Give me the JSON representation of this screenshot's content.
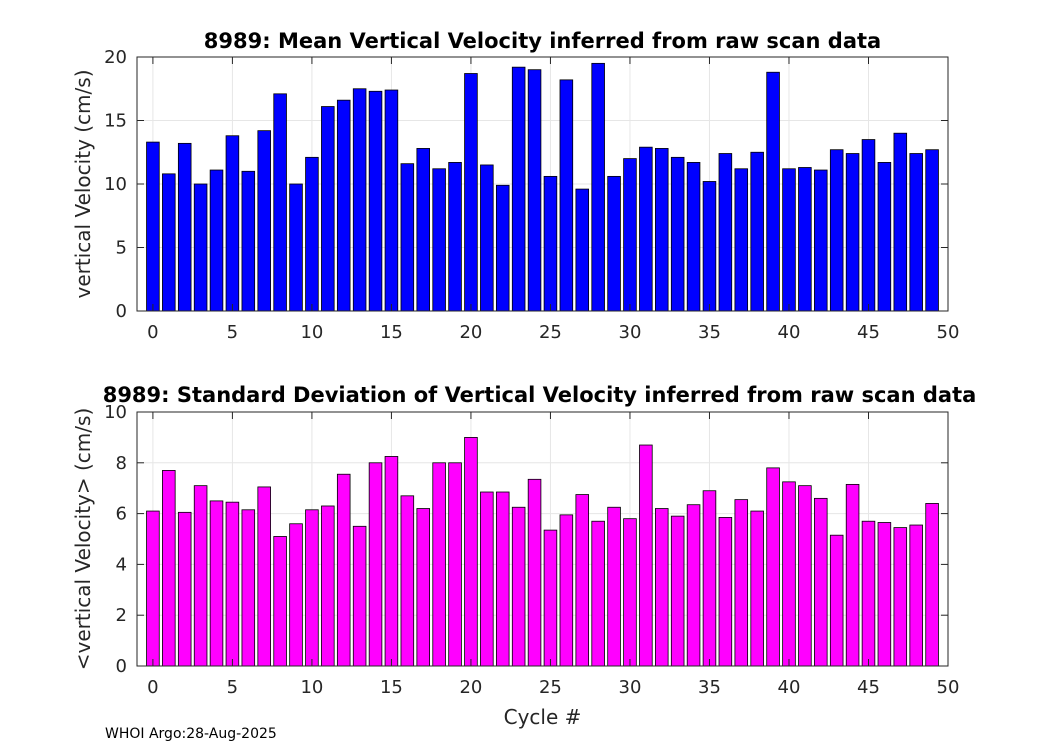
{
  "footer": "WHOI Argo:28-Aug-2025",
  "colors": {
    "top_bar": "#0000ff",
    "bottom_bar": "#ff00ff",
    "edge": "#000000",
    "grid": "#e6e6e6"
  },
  "chart_data": [
    {
      "type": "bar",
      "title": "8989: Mean Vertical Velocity inferred from raw scan data",
      "xlabel": "",
      "ylabel": "vertical Velocity (cm/s)",
      "xlim": [
        -1,
        50
      ],
      "ylim": [
        0,
        20
      ],
      "xticks": [
        0,
        5,
        10,
        15,
        20,
        25,
        30,
        35,
        40,
        45,
        50
      ],
      "yticks": [
        0,
        5,
        10,
        15,
        20
      ],
      "grid": true,
      "x": [
        0,
        1,
        2,
        3,
        4,
        5,
        6,
        7,
        8,
        9,
        10,
        11,
        12,
        13,
        14,
        15,
        16,
        17,
        18,
        19,
        20,
        21,
        22,
        23,
        24,
        25,
        26,
        27,
        28,
        29,
        30,
        31,
        32,
        33,
        34,
        35,
        36,
        37,
        38,
        39,
        40,
        41,
        42,
        43,
        44,
        45,
        46,
        47,
        48,
        49
      ],
      "values": [
        13.3,
        10.8,
        13.2,
        10.0,
        11.1,
        13.8,
        11.0,
        14.2,
        17.1,
        10.0,
        12.1,
        16.1,
        16.6,
        17.5,
        17.3,
        17.4,
        11.6,
        12.8,
        11.2,
        11.7,
        18.7,
        11.5,
        9.9,
        19.2,
        19.0,
        10.6,
        18.2,
        9.6,
        19.5,
        10.6,
        12.0,
        12.9,
        12.8,
        12.1,
        11.7,
        10.2,
        12.4,
        11.2,
        12.5,
        18.8,
        11.2,
        11.3,
        11.1,
        12.7,
        12.4,
        13.5,
        11.7,
        14.0,
        12.4,
        12.7
      ]
    },
    {
      "type": "bar",
      "title": "8989: Standard Deviation of Vertical Velocity inferred from raw scan data",
      "xlabel": "Cycle #",
      "ylabel": "<vertical Velocity> (cm/s)",
      "xlim": [
        -1,
        50
      ],
      "ylim": [
        0,
        10
      ],
      "xticks": [
        0,
        5,
        10,
        15,
        20,
        25,
        30,
        35,
        40,
        45,
        50
      ],
      "yticks": [
        0,
        2,
        4,
        6,
        8,
        10
      ],
      "grid": true,
      "x": [
        0,
        1,
        2,
        3,
        4,
        5,
        6,
        7,
        8,
        9,
        10,
        11,
        12,
        13,
        14,
        15,
        16,
        17,
        18,
        19,
        20,
        21,
        22,
        23,
        24,
        25,
        26,
        27,
        28,
        29,
        30,
        31,
        32,
        33,
        34,
        35,
        36,
        37,
        38,
        39,
        40,
        41,
        42,
        43,
        44,
        45,
        46,
        47,
        48,
        49
      ],
      "values": [
        6.1,
        7.7,
        6.05,
        7.1,
        6.5,
        6.45,
        6.15,
        7.05,
        5.1,
        5.6,
        6.15,
        6.3,
        7.55,
        5.5,
        8.0,
        8.25,
        6.7,
        6.2,
        8.0,
        8.0,
        9.0,
        6.85,
        6.85,
        6.25,
        7.35,
        5.35,
        5.95,
        6.75,
        5.7,
        6.25,
        5.8,
        8.7,
        6.2,
        5.9,
        6.35,
        6.9,
        5.85,
        6.55,
        6.1,
        7.8,
        7.25,
        7.1,
        6.6,
        5.15,
        7.15,
        5.7,
        5.65,
        5.45,
        5.55,
        6.4
      ]
    }
  ]
}
